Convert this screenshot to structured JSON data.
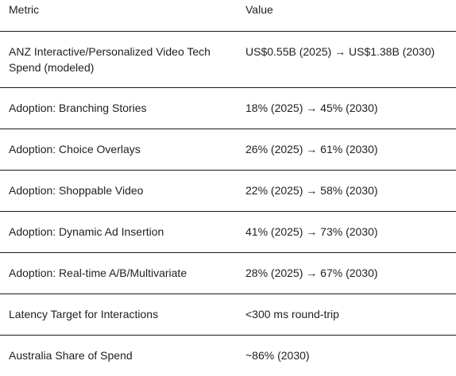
{
  "table": {
    "headers": {
      "metric": "Metric",
      "value": "Value"
    },
    "rows": [
      {
        "metric": "ANZ Interactive/Personalized Video Tech Spend (modeled)",
        "value": "US$0.55B (2025) → US$1.38B (2030)"
      },
      {
        "metric": "Adoption: Branching Stories",
        "value": "18% (2025) → 45% (2030)"
      },
      {
        "metric": "Adoption: Choice Overlays",
        "value": "26% (2025) → 61% (2030)"
      },
      {
        "metric": "Adoption: Shoppable Video",
        "value": "22% (2025) → 58% (2030)"
      },
      {
        "metric": "Adoption: Dynamic Ad Insertion",
        "value": "41% (2025) → 73% (2030)"
      },
      {
        "metric": "Adoption: Real-time A/B/Multivariate",
        "value": "28% (2025) → 67% (2030)"
      },
      {
        "metric": "Latency Target for Interactions",
        "value": "<300 ms round-trip"
      },
      {
        "metric": "Australia Share of Spend",
        "value": "~86% (2030)"
      }
    ]
  }
}
